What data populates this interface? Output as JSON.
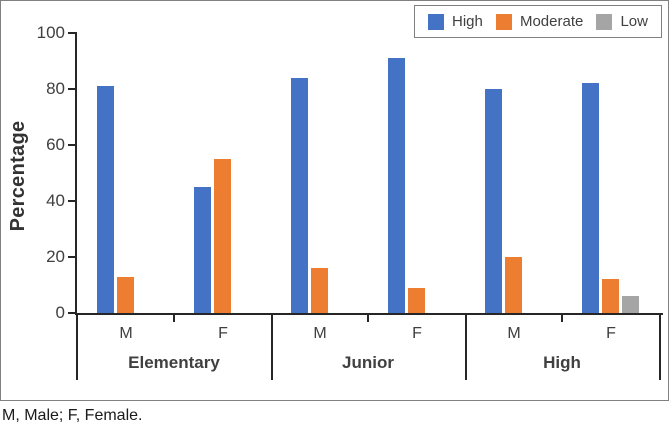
{
  "figure": {
    "footnote": "M, Male; F, Female."
  },
  "chart_data": {
    "type": "bar",
    "title": "",
    "xlabel": "",
    "ylabel": "Percentage",
    "ylim": [
      0,
      100
    ],
    "yticks": [
      0,
      20,
      40,
      60,
      80,
      100
    ],
    "grid": false,
    "legend_position": "top-right",
    "groups": [
      "Elementary",
      "Junior",
      "High"
    ],
    "subcategories": [
      "M",
      "F"
    ],
    "categories": [
      "Elementary M",
      "Elementary F",
      "Junior M",
      "Junior F",
      "High M",
      "High F"
    ],
    "series": [
      {
        "name": "High",
        "color": "#4472C4",
        "values": [
          81,
          45,
          84,
          91,
          80,
          82
        ]
      },
      {
        "name": "Moderate",
        "color": "#ED7D31",
        "values": [
          13,
          55,
          16,
          9,
          20,
          12
        ]
      },
      {
        "name": "Low",
        "color": "#A5A5A5",
        "values": [
          0,
          0,
          0,
          0,
          0,
          6
        ]
      }
    ],
    "axis_color": "#262626",
    "text_color": "#404040",
    "border_color": "#808080"
  }
}
